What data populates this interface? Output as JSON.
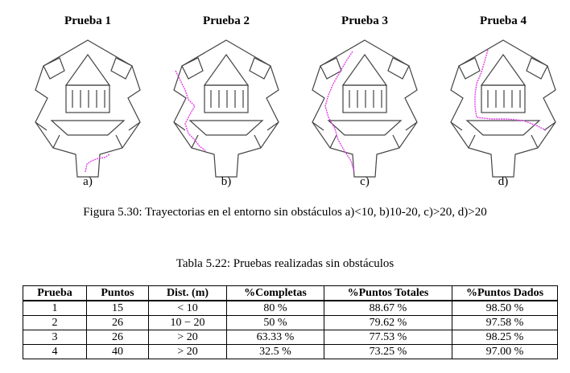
{
  "panels": [
    {
      "title": "Prueba 1",
      "label": "a)"
    },
    {
      "title": "Prueba 2",
      "label": "b)"
    },
    {
      "title": "Prueba 3",
      "label": "c)"
    },
    {
      "title": "Prueba 4",
      "label": "d)"
    }
  ],
  "figure_caption": "Figura 5.30: Trayectorias en el entorno sin obstáculos a)<10, b)10-20, c)>20, d)>20",
  "table_caption": "Tabla 5.22: Pruebas realizadas sin obstáculos",
  "table": {
    "headers": [
      "Prueba",
      "Puntos",
      "Dist. (m)",
      "%Completas",
      "%Puntos Totales",
      "%Puntos Dados"
    ],
    "rows": [
      [
        "1",
        "15",
        "< 10",
        "80 %",
        "88.67 %",
        "98.50 %"
      ],
      [
        "2",
        "26",
        "10 − 20",
        "50 %",
        "79.62 %",
        "97.58 %"
      ],
      [
        "3",
        "26",
        "> 20",
        "63.33 %",
        "77.53 %",
        "98.25 %"
      ],
      [
        "4",
        "40",
        "> 20",
        "32.5 %",
        "73.25 %",
        "97.00 %"
      ]
    ]
  },
  "colors": {
    "trajectory": "#e040e8",
    "walls": "#444444"
  }
}
